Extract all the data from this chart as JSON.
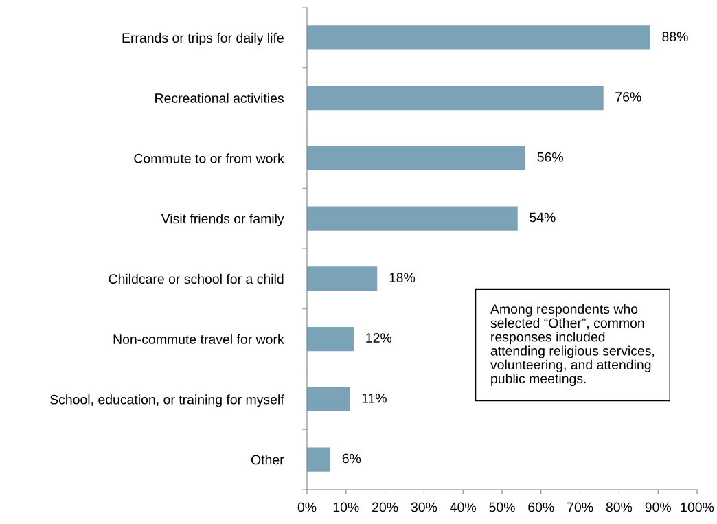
{
  "chart_data": {
    "type": "bar",
    "orientation": "horizontal",
    "categories": [
      "Errands or trips for daily life",
      "Recreational activities",
      "Commute to or from work",
      "Visit friends or family",
      "Childcare or school for a child",
      "Non-commute travel for work",
      "School, education, or training for myself",
      "Other"
    ],
    "values": [
      88,
      76,
      56,
      54,
      18,
      12,
      11,
      6
    ],
    "value_labels": [
      "88%",
      "76%",
      "56%",
      "54%",
      "18%",
      "12%",
      "11%",
      "6%"
    ],
    "color": "#7aa3b8",
    "xlim": [
      0,
      100
    ],
    "xticks": [
      {
        "value": 0,
        "label": "0%"
      },
      {
        "value": 10,
        "label": "10%"
      },
      {
        "value": 20,
        "label": "20%"
      },
      {
        "value": 30,
        "label": "30%"
      },
      {
        "value": 40,
        "label": "40%"
      },
      {
        "value": 50,
        "label": "50%"
      },
      {
        "value": 60,
        "label": "60%"
      },
      {
        "value": 70,
        "label": "70%"
      },
      {
        "value": 80,
        "label": "80%"
      },
      {
        "value": 90,
        "label": "90%"
      },
      {
        "value": 100,
        "label": "100%"
      }
    ],
    "grid": false,
    "legend": false,
    "annotations": [
      "Among respondents who\nselected “Other”, common\nresponses included\nattending religious services,\nvolunteering, and attending\npublic meetings."
    ]
  }
}
